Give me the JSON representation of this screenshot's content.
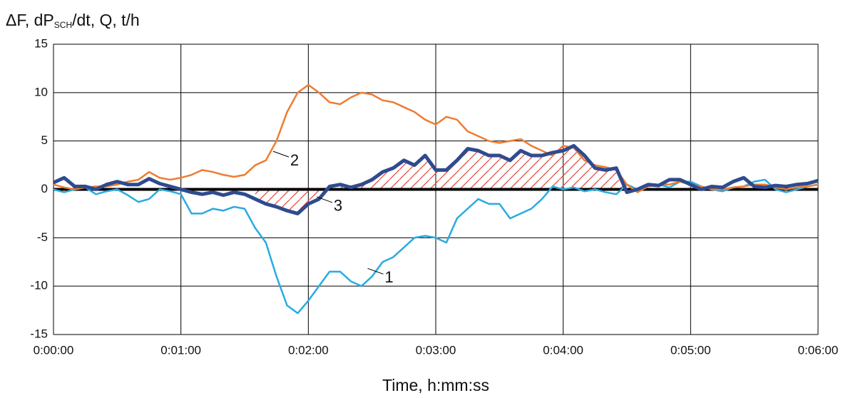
{
  "chart_data": {
    "type": "line",
    "y_label": [
      "ΔF, dP",
      "SCH",
      "/dt, Q, t/h"
    ],
    "x_label": "Time, h:mm:ss",
    "x": [
      0,
      5,
      10,
      15,
      20,
      25,
      30,
      35,
      40,
      45,
      50,
      55,
      60,
      65,
      70,
      75,
      80,
      85,
      90,
      95,
      100,
      105,
      110,
      115,
      120,
      125,
      130,
      135,
      140,
      145,
      150,
      155,
      160,
      165,
      170,
      175,
      180,
      185,
      190,
      195,
      200,
      205,
      210,
      215,
      220,
      225,
      230,
      235,
      240,
      245,
      250,
      255,
      260,
      265,
      270,
      275,
      280,
      285,
      290,
      295,
      300,
      305,
      310,
      315,
      320,
      325,
      330,
      335,
      340,
      345,
      350,
      355,
      360
    ],
    "series": [
      {
        "color": "#29abe2",
        "width": 2.5,
        "values": [
          0,
          -0.3,
          0,
          0.2,
          -0.5,
          -0.2,
          0,
          -0.6,
          -1.3,
          -1,
          0,
          -0.2,
          -0.5,
          -2.5,
          -2.5,
          -2,
          -2.2,
          -1.8,
          -2,
          -4,
          -5.5,
          -9,
          -12,
          -12.8,
          -11.5,
          -10,
          -8.5,
          -8.5,
          -9.5,
          -10,
          -9,
          -7.5,
          -7,
          -6,
          -5,
          -4.8,
          -5,
          -5.5,
          -3,
          -2,
          -1,
          -1.5,
          -1.5,
          -3,
          -2.5,
          -2,
          -1,
          0.3,
          0,
          0.2,
          -0.2,
          0,
          -0.3,
          -0.5,
          0.5,
          0,
          0.3,
          0.5,
          0.2,
          0.8,
          0.8,
          0.3,
          0,
          -0.2,
          0.2,
          0.3,
          0.8,
          1,
          0,
          -0.3,
          0,
          0.3,
          0.5
        ]
      },
      {
        "color": "#ed7d31",
        "width": 2.5,
        "values": [
          0.5,
          0.2,
          0,
          0.2,
          0.3,
          0.3,
          0.5,
          0.8,
          1,
          1.8,
          1.2,
          1,
          1.2,
          1.5,
          2,
          1.8,
          1.5,
          1.3,
          1.5,
          2.5,
          3,
          5,
          8,
          10,
          10.8,
          10,
          9,
          8.8,
          9.5,
          10,
          9.8,
          9.2,
          9,
          8.5,
          8,
          7.2,
          6.7,
          7.5,
          7.2,
          6,
          5.5,
          5,
          4.8,
          5,
          5.2,
          4.5,
          4,
          3.5,
          4.5,
          4.3,
          3,
          2.5,
          2.3,
          2,
          0.5,
          -0.3,
          0.3,
          0.5,
          0.5,
          0.8,
          0.5,
          0.3,
          0,
          0,
          0.2,
          0.3,
          0.5,
          0.5,
          0.2,
          0,
          0.2,
          0.3,
          0.5
        ]
      },
      {
        "color": "#2f4b8f",
        "width": 5,
        "values": [
          0.7,
          1.2,
          0.3,
          0.3,
          0,
          0.5,
          0.8,
          0.5,
          0.5,
          1.1,
          0.6,
          0.3,
          0,
          -0.3,
          -0.5,
          -0.3,
          -0.6,
          -0.3,
          -0.5,
          -1,
          -1.5,
          -1.8,
          -2.2,
          -2.5,
          -1.5,
          -1,
          0.3,
          0.5,
          0.2,
          0.5,
          1,
          1.8,
          2.2,
          3,
          2.5,
          3.5,
          2,
          2,
          3,
          4.2,
          4,
          3.5,
          3.5,
          3,
          4,
          3.5,
          3.5,
          3.8,
          4,
          4.5,
          3.5,
          2.2,
          2,
          2.2,
          -0.3,
          0,
          0.5,
          0.4,
          1,
          1,
          0.5,
          0,
          0.3,
          0.2,
          0.8,
          1.2,
          0.3,
          0.2,
          0.4,
          0.3,
          0.5,
          0.6,
          0.9
        ]
      }
    ],
    "hatch": {
      "series": 2,
      "color": "#d9473d",
      "from": 95,
      "to": 272
    },
    "annotations": [
      {
        "text": "1",
        "x": 158,
        "y": -9.2
      },
      {
        "text": "2",
        "x": 113.5,
        "y": 2.9
      },
      {
        "text": "3",
        "x": 134,
        "y": -1.8
      }
    ],
    "xlim": [
      0,
      360
    ],
    "xticks": [
      {
        "value": 0,
        "label": "0:00:00"
      },
      {
        "value": 60,
        "label": "0:01:00"
      },
      {
        "value": 120,
        "label": "0:02:00"
      },
      {
        "value": 180,
        "label": "0:03:00"
      },
      {
        "value": 240,
        "label": "0:04:00"
      },
      {
        "value": 300,
        "label": "0:05:00"
      },
      {
        "value": 360,
        "label": "0:06:00"
      }
    ],
    "ylim": [
      -15,
      15
    ],
    "yticks": [
      -15,
      -10,
      -5,
      0,
      5,
      10,
      15
    ],
    "grid": true
  }
}
